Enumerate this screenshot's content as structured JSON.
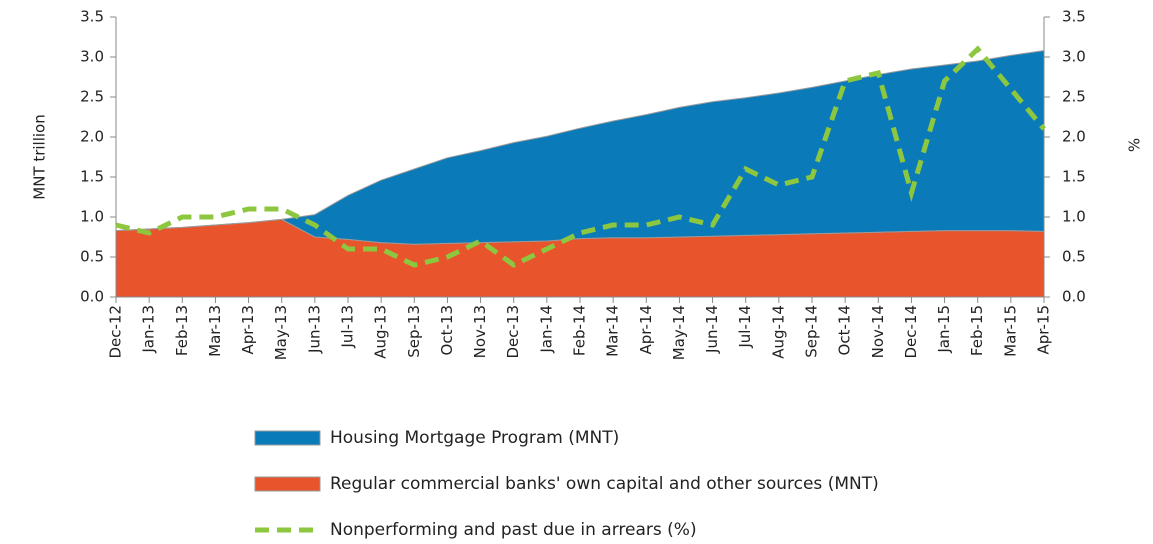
{
  "chart_data": {
    "type": "stacked_area_line",
    "y_label": "MNT trillion",
    "y2_label": "%",
    "categories": [
      "Dec-12",
      "Jan-13",
      "Feb-13",
      "Mar-13",
      "Apr-13",
      "May-13",
      "Jun-13",
      "Jul-13",
      "Aug-13",
      "Sep-13",
      "Oct-13",
      "Nov-13",
      "Dec-13",
      "Jan-14",
      "Feb-14",
      "Mar-14",
      "Apr-14",
      "May-14",
      "Jun-14",
      "Jul-14",
      "Aug-14",
      "Sep-14",
      "Oct-14",
      "Nov-14",
      "Dec-14",
      "Jan-15",
      "Feb-15",
      "Mar-15",
      "Apr-15"
    ],
    "series": [
      {
        "name": "Housing Mortgage Program (MNT)",
        "color": "#0a7ab8",
        "kind": "area",
        "values": [
          0,
          0,
          0,
          0,
          0,
          0,
          0.28,
          0.55,
          0.78,
          0.94,
          1.07,
          1.15,
          1.24,
          1.31,
          1.38,
          1.46,
          1.54,
          1.62,
          1.68,
          1.72,
          1.77,
          1.83,
          1.9,
          1.97,
          2.03,
          2.07,
          2.12,
          2.19,
          2.26
        ]
      },
      {
        "name": "Regular commercial banks' own capital and other sources (MNT)",
        "color": "#e8542c",
        "kind": "area",
        "values": [
          0.83,
          0.85,
          0.87,
          0.9,
          0.93,
          0.97,
          0.75,
          0.72,
          0.68,
          0.66,
          0.67,
          0.68,
          0.69,
          0.7,
          0.73,
          0.74,
          0.74,
          0.75,
          0.76,
          0.77,
          0.78,
          0.79,
          0.8,
          0.81,
          0.82,
          0.83,
          0.83,
          0.83,
          0.82
        ]
      },
      {
        "name": "Nonperforming and past due in arrears (%)",
        "color": "#8dc63f",
        "kind": "line",
        "axis": "y2",
        "values": [
          0.9,
          0.8,
          1.0,
          1.0,
          1.1,
          1.1,
          0.9,
          0.6,
          0.6,
          0.4,
          0.5,
          0.7,
          0.4,
          0.6,
          0.8,
          0.9,
          0.9,
          1.0,
          0.9,
          1.6,
          1.4,
          1.5,
          2.7,
          2.8,
          1.3,
          2.7,
          3.1,
          2.6,
          2.1
        ]
      }
    ],
    "ylim": [
      0,
      3.5
    ],
    "yticks": [
      {
        "value": 0,
        "label": "0.0"
      },
      0.5,
      {
        "value": 1,
        "label": "1.0"
      },
      1.5,
      {
        "value": 2,
        "label": "2.0"
      },
      2.5,
      {
        "value": 3,
        "label": "3.0"
      },
      3.5
    ],
    "y2lim": [
      0,
      3.5
    ],
    "y2ticks": [
      {
        "value": 0,
        "label": "0.0"
      },
      0.5,
      {
        "value": 1,
        "label": "1.0"
      },
      1.5,
      {
        "value": 2,
        "label": "2.0"
      },
      2.5,
      {
        "value": 3,
        "label": "3.0"
      },
      3.5
    ]
  }
}
